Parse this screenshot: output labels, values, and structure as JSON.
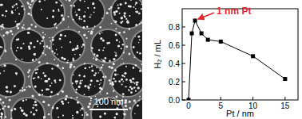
{
  "micrograph": {
    "scale_bar_label": "100 nm"
  },
  "chart_data": {
    "type": "line",
    "x_label": "Pt / nm",
    "y_label": "H₂ / mL",
    "x": [
      0,
      0.5,
      1,
      2,
      3,
      5,
      10,
      15
    ],
    "values": [
      0.0,
      0.73,
      0.87,
      0.73,
      0.66,
      0.64,
      0.48,
      0.23
    ],
    "color": "#000000",
    "marker": "square",
    "line_style": "solid",
    "xlim": [
      -1,
      17
    ],
    "xticks": [
      0,
      5,
      10,
      15
    ],
    "ylim": [
      0,
      1.0
    ],
    "yticks": [
      {
        "value": 0,
        "label": "0.0"
      },
      {
        "value": 0.2,
        "label": "0.2"
      },
      {
        "value": 0.4,
        "label": "0.4"
      },
      {
        "value": 0.6,
        "label": "0.6"
      },
      {
        "value": 0.8,
        "label": "0.8"
      }
    ],
    "grid": false,
    "annotations": [
      {
        "text": "1 nm Pt",
        "x": 1,
        "y": 0.87
      }
    ]
  }
}
